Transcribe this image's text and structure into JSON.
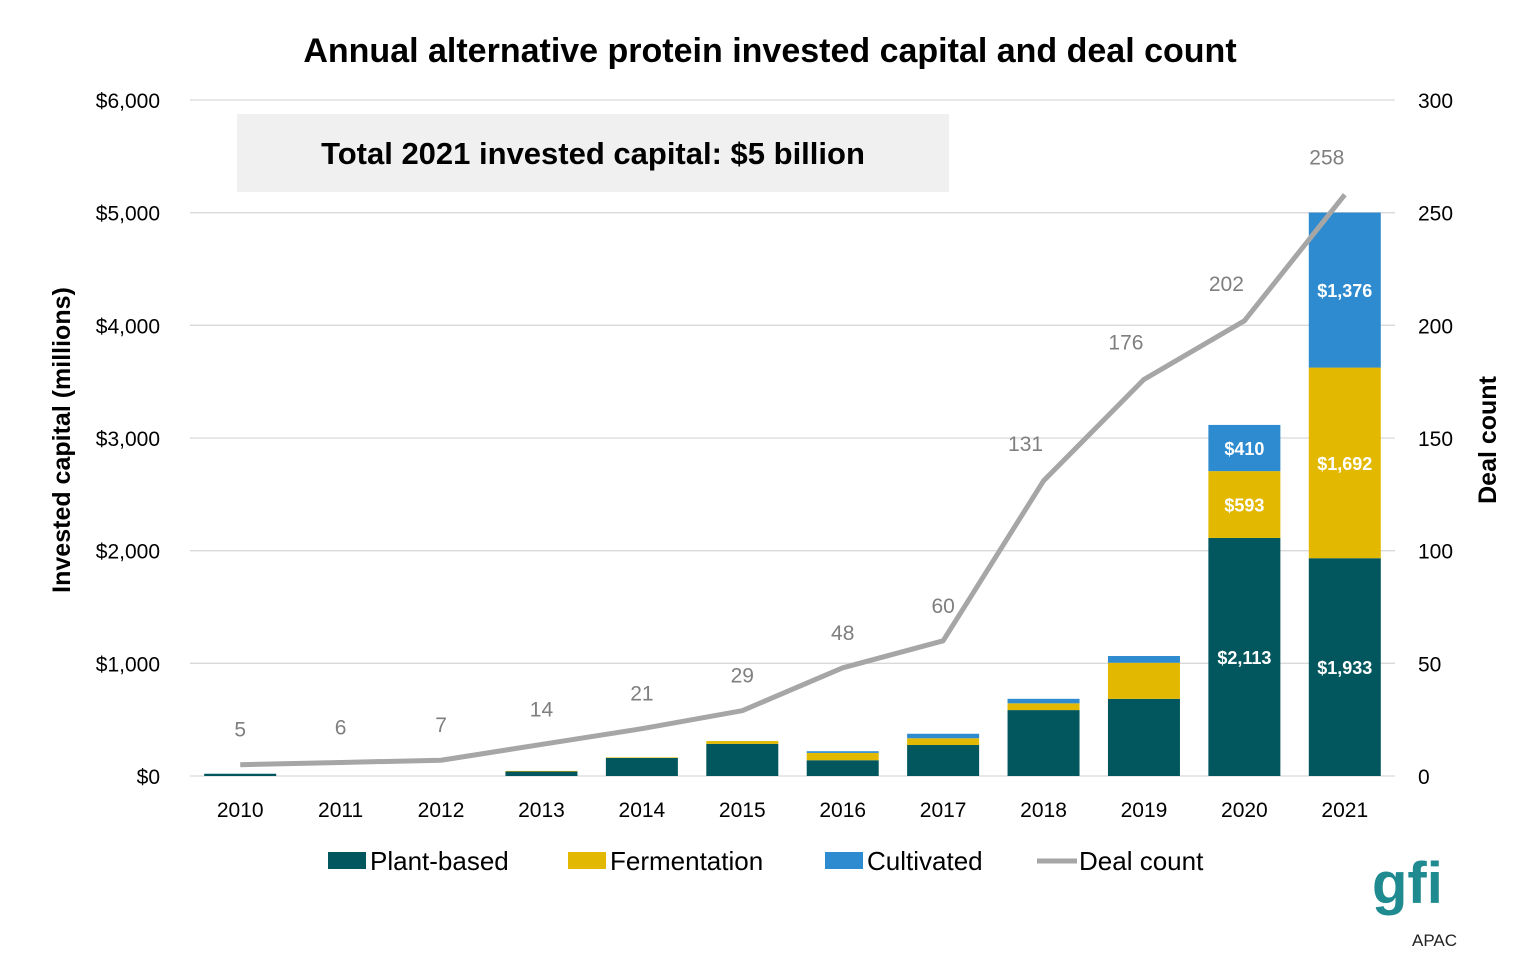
{
  "chart_data": {
    "type": "bar",
    "title": "Annual alternative protein invested capital and deal count",
    "annotation": "Total 2021 invested capital: $5 billion",
    "ylabel": "Invested capital (millions)",
    "y2label": "Deal count",
    "ylim": [
      0,
      6000
    ],
    "y2lim": [
      0,
      300
    ],
    "yticks": [
      "$0",
      "$1,000",
      "$2,000",
      "$3,000",
      "$4,000",
      "$5,000",
      "$6,000"
    ],
    "y2ticks": [
      "0",
      "50",
      "100",
      "150",
      "200",
      "250",
      "300"
    ],
    "grid": true,
    "stacked": true,
    "legend_placement": "bottom",
    "categories": [
      "2010",
      "2011",
      "2012",
      "2013",
      "2014",
      "2015",
      "2016",
      "2017",
      "2018",
      "2019",
      "2020",
      "2021"
    ],
    "series": [
      {
        "name": "Plant-based",
        "type": "bar",
        "color": "#02575e",
        "values": [
          20,
          0,
          0,
          40,
          160,
          285,
          140,
          275,
          585,
          685,
          2113,
          1933
        ],
        "labels": [
          null,
          null,
          null,
          null,
          null,
          null,
          null,
          null,
          null,
          null,
          "$2,113",
          "$1,933"
        ]
      },
      {
        "name": "Fermentation",
        "type": "bar",
        "color": "#e2b900",
        "values": [
          0,
          0,
          0,
          5,
          5,
          25,
          65,
          60,
          60,
          320,
          593,
          1692
        ],
        "labels": [
          null,
          null,
          null,
          null,
          null,
          null,
          null,
          null,
          null,
          null,
          "$593",
          "$1,692"
        ]
      },
      {
        "name": "Cultivated",
        "type": "bar",
        "color": "#2e8bcf",
        "values": [
          0,
          0,
          0,
          0,
          0,
          0,
          15,
          40,
          40,
          60,
          410,
          1376
        ],
        "labels": [
          null,
          null,
          null,
          null,
          null,
          null,
          null,
          null,
          null,
          null,
          "$410",
          "$1,376"
        ]
      },
      {
        "name": "Deal count",
        "type": "line",
        "axis": "right",
        "color": "#a6a6a6",
        "values": [
          5,
          6,
          7,
          14,
          21,
          29,
          48,
          60,
          131,
          176,
          202,
          258
        ]
      }
    ]
  },
  "logo": {
    "text": "gfi",
    "subtext": "APAC",
    "color": "#1f8a8f"
  }
}
